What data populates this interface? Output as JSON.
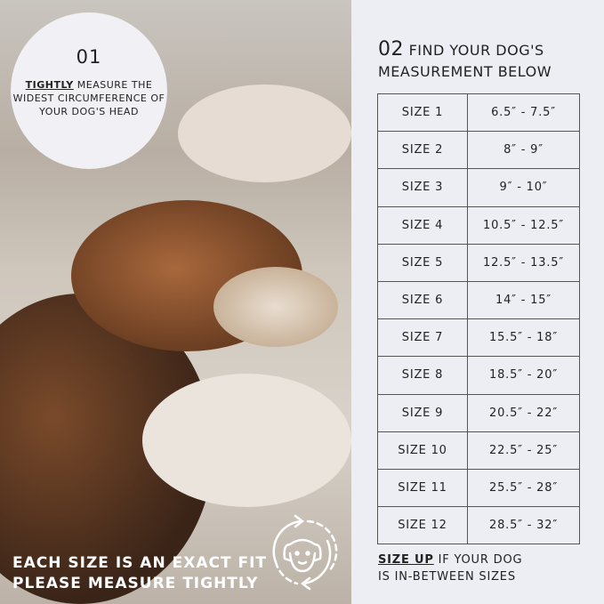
{
  "step1": {
    "number": "01",
    "emphasis": "TIGHTLY",
    "text": "MEASURE THE WIDEST CIRCUMFERENCE OF YOUR DOG'S HEAD"
  },
  "notice": {
    "line1": "EACH SIZE IS AN EXACT FIT",
    "line2": "PLEASE MEASURE TIGHTLY"
  },
  "icon": "dog-measure-cycle-icon",
  "step2": {
    "number": "02",
    "title_line1": "FIND YOUR DOG'S",
    "title_line2": "MEASUREMENT BELOW"
  },
  "sizes": [
    {
      "size": "SIZE 1",
      "range": "6.5″ - 7.5″"
    },
    {
      "size": "SIZE 2",
      "range": "8″ - 9″"
    },
    {
      "size": "SIZE 3",
      "range": "9″ - 10″"
    },
    {
      "size": "SIZE 4",
      "range": "10.5″ - 12.5″"
    },
    {
      "size": "SIZE 5",
      "range": "12.5″ - 13.5″"
    },
    {
      "size": "SIZE 6",
      "range": "14″ - 15″"
    },
    {
      "size": "SIZE 7",
      "range": "15.5″ - 18″"
    },
    {
      "size": "SIZE 8",
      "range": "18.5″ - 20″"
    },
    {
      "size": "SIZE 9",
      "range": "20.5″ - 22″"
    },
    {
      "size": "SIZE 10",
      "range": "22.5″ - 25″"
    },
    {
      "size": "SIZE 11",
      "range": "25.5″ - 28″"
    },
    {
      "size": "SIZE 12",
      "range": "28.5″ - 32″"
    }
  ],
  "footer": {
    "emphasis": "SIZE UP",
    "line1_rest": " IF YOUR DOG",
    "line2": "IS IN-BETWEEN SIZES"
  }
}
